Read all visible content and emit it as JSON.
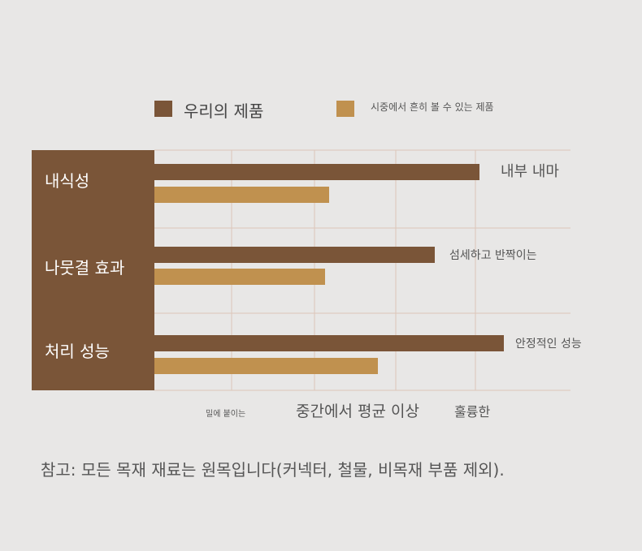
{
  "colors": {
    "background": "#e8e7e6",
    "panel": "#7a5538",
    "ours": "#7a5538",
    "market": "#c0914f",
    "grid": "#dcc5b8"
  },
  "legend": {
    "items": [
      {
        "label": "우리의 제품",
        "color": "#7a5538"
      },
      {
        "label": "시중에서 흔히 볼 수 있는 제품",
        "color": "#c0914f"
      }
    ]
  },
  "chart_data": {
    "type": "bar",
    "orientation": "horizontal",
    "categories": [
      "내식성",
      "나뭇결 효과",
      "처리 성능"
    ],
    "series": [
      {
        "name": "우리의 제품",
        "values": [
          4.0,
          3.45,
          4.3
        ]
      },
      {
        "name": "시중에서 흔히 볼 수 있는 제품",
        "values": [
          2.15,
          2.1,
          2.75
        ]
      }
    ],
    "annotations": [
      "내부 내마",
      "섬세하고 반짝이는",
      "안정적인 성능"
    ],
    "xlim": [
      0,
      5.1
    ],
    "x_ticks": [
      {
        "value": 0.8,
        "label": "밀에 붙이는"
      },
      {
        "value": 2.6,
        "label": "중간에서 평균 이상"
      },
      {
        "value": 3.9,
        "label": "훌륭한"
      }
    ],
    "grid": true
  },
  "footnote": "참고: 모든 목재 재료는 원목입니다(커넥터, 철물, 비목재 부품 제외)."
}
